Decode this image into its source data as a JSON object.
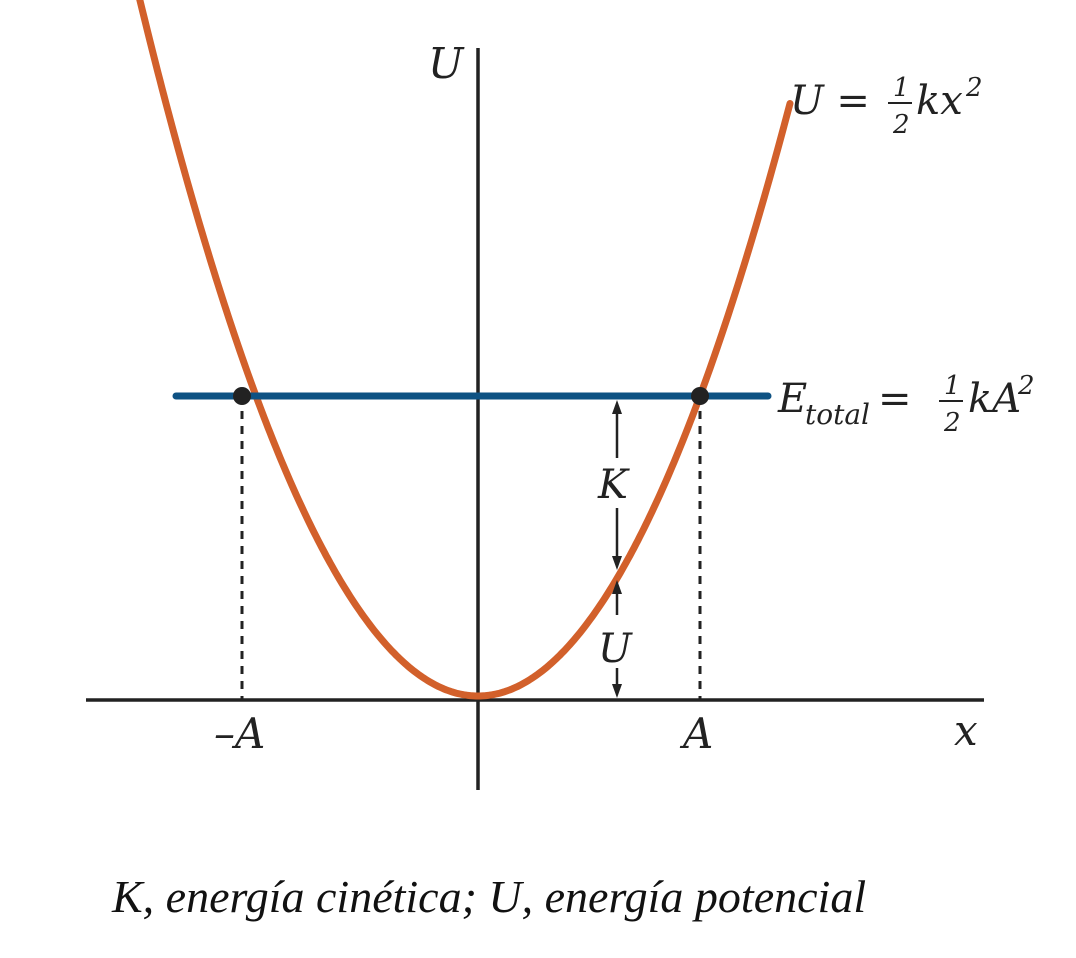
{
  "labels": {
    "y_axis": "U",
    "x_axis": "x",
    "neg_amplitude": "–A",
    "pos_amplitude": "A",
    "kinetic": "K",
    "potential": "U"
  },
  "equations": {
    "curve_lhs": "U = ",
    "curve_frac_num": "1",
    "curve_frac_den": "2",
    "curve_rhs": "kx",
    "curve_exp": "2",
    "energy_lhs": "E",
    "energy_sub": "total",
    "energy_eq": " = ",
    "energy_frac_num": "1",
    "energy_frac_den": "2",
    "energy_rhs": "kA",
    "energy_exp": "2"
  },
  "caption": "K, energía cinética; U, energía potencial",
  "colors": {
    "curve": "#d2602b",
    "energy_line": "#0e5283",
    "axes": "#222222"
  }
}
